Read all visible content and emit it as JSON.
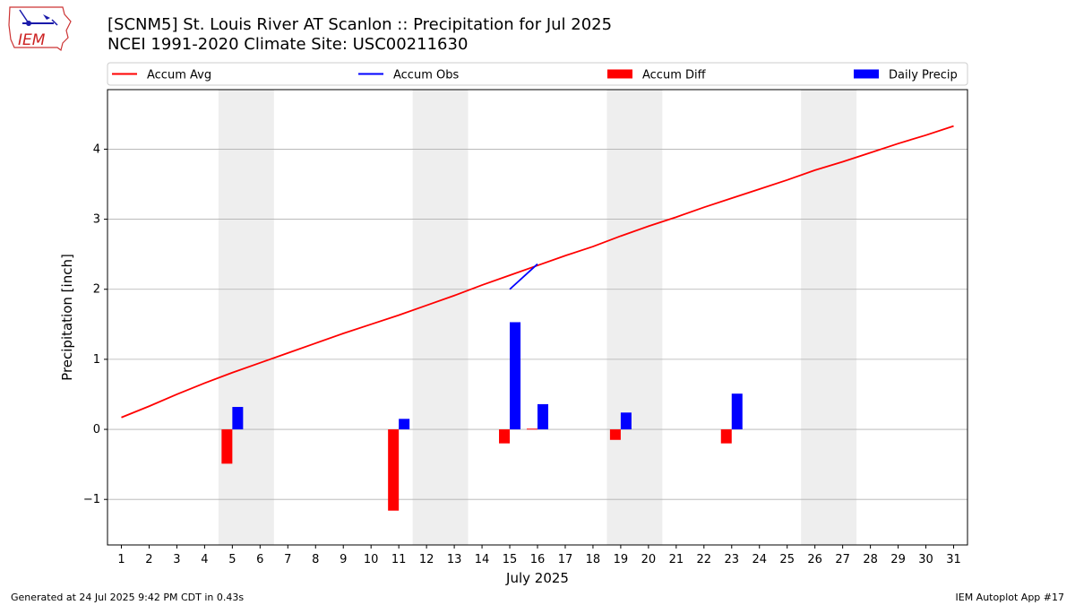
{
  "header": {
    "title_line1": "[SCNM5] St. Louis River  AT Scanlon :: Precipitation for Jul 2025",
    "title_line2": "NCEI 1991-2020 Climate Site: USC00211630"
  },
  "logo": {
    "text": "IEM"
  },
  "footer": {
    "generated": "Generated at 24 Jul 2025 9:42 PM CDT in 0.43s",
    "app": "IEM Autoplot App #17"
  },
  "colors": {
    "accum_avg": "#ff0000",
    "accum_obs": "#0000ff",
    "accum_diff": "#ff0000",
    "daily_precip": "#0000ff",
    "weekend_band": "#eeeeee",
    "grid": "#b0b0b0"
  },
  "chart_data": {
    "type": "bar",
    "xlabel": "July 2025",
    "ylabel": "Precipitation [inch]",
    "xlim": [
      0.5,
      31.5
    ],
    "ylim": [
      -1.65,
      4.85
    ],
    "yticks": [
      -1,
      0,
      1,
      2,
      3,
      4
    ],
    "ytick_labels": [
      "−1",
      "0",
      "1",
      "2",
      "3",
      "4"
    ],
    "xticks": [
      1,
      2,
      3,
      4,
      5,
      6,
      7,
      8,
      9,
      10,
      11,
      12,
      13,
      14,
      15,
      16,
      17,
      18,
      19,
      20,
      21,
      22,
      23,
      24,
      25,
      26,
      27,
      28,
      29,
      30,
      31
    ],
    "xtick_labels": [
      "1",
      "2",
      "3",
      "4",
      "5",
      "6",
      "7",
      "8",
      "9",
      "10",
      "11",
      "12",
      "13",
      "14",
      "15",
      "16",
      "17",
      "18",
      "19",
      "20",
      "21",
      "22",
      "23",
      "24",
      "25",
      "26",
      "27",
      "28",
      "29",
      "30",
      "31"
    ],
    "grid": "horizontal",
    "legend_position": "top, above plot",
    "weekend_bands": [
      [
        4.5,
        6.5
      ],
      [
        11.5,
        13.5
      ],
      [
        18.5,
        20.5
      ],
      [
        25.5,
        27.5
      ]
    ],
    "legend": [
      {
        "label": "Accum Avg",
        "kind": "line",
        "color": "#ff0000"
      },
      {
        "label": "Accum Obs",
        "kind": "line",
        "color": "#0000ff"
      },
      {
        "label": "Accum Diff",
        "kind": "bar",
        "color": "#ff0000"
      },
      {
        "label": "Daily Precip",
        "kind": "bar",
        "color": "#0000ff"
      }
    ],
    "series": [
      {
        "name": "Accum Avg",
        "type": "line",
        "x": [
          1,
          2,
          3,
          4,
          5,
          6,
          7,
          8,
          9,
          10,
          11,
          12,
          13,
          14,
          15,
          16,
          17,
          18,
          19,
          20,
          21,
          22,
          23,
          24,
          25,
          26,
          27,
          28,
          29,
          30,
          31
        ],
        "values": [
          0.17,
          0.33,
          0.5,
          0.66,
          0.81,
          0.95,
          1.09,
          1.23,
          1.37,
          1.5,
          1.63,
          1.77,
          1.91,
          2.06,
          2.2,
          2.34,
          2.48,
          2.61,
          2.76,
          2.9,
          3.03,
          3.17,
          3.3,
          3.43,
          3.56,
          3.7,
          3.82,
          3.95,
          4.08,
          4.2,
          4.33
        ]
      },
      {
        "name": "Accum Obs",
        "type": "line",
        "x": [
          15,
          16
        ],
        "values": [
          2.0,
          2.36
        ]
      },
      {
        "name": "Accum Diff",
        "type": "bar",
        "x": [
          5,
          11,
          15,
          16,
          19,
          23
        ],
        "values": [
          -0.49,
          -1.16,
          -0.2,
          0.01,
          -0.15,
          -0.2
        ]
      },
      {
        "name": "Daily Precip",
        "type": "bar",
        "x": [
          5,
          11,
          15,
          16,
          19,
          23
        ],
        "values": [
          0.32,
          0.15,
          1.53,
          0.36,
          0.24,
          0.51
        ]
      }
    ]
  }
}
